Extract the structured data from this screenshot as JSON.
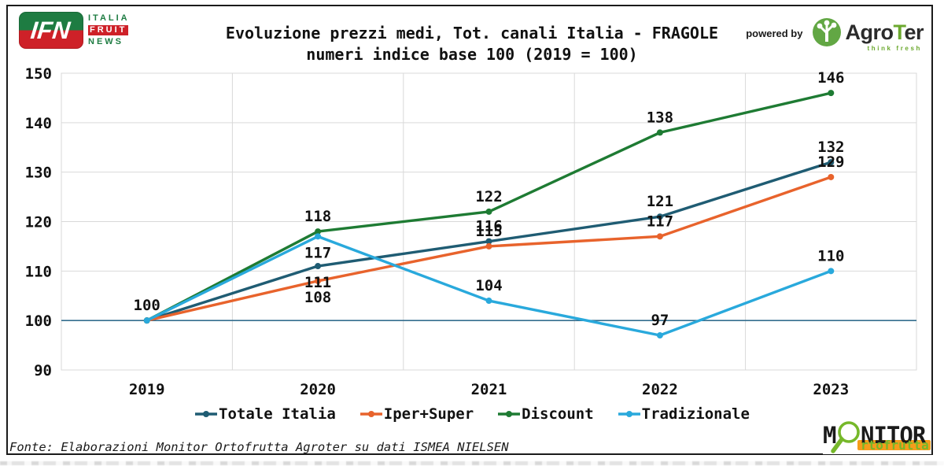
{
  "header": {
    "ifn_logo": {
      "acronym": "IFN",
      "line1": "ITALIA",
      "line2": "FRUIT",
      "line3": "NEWS"
    },
    "title_line1": "Evoluzione prezzi medi, Tot. canali Italia - FRAGOLE",
    "title_line2": "numeri indice base 100 (2019 = 100)",
    "powered_by": "powered by",
    "agroter": {
      "prefix": "Agro",
      "t": "T",
      "suffix": "er",
      "tagline": "think fresh"
    }
  },
  "chart_data": {
    "type": "line",
    "title": "Evoluzione prezzi medi, Tot. canali Italia - FRAGOLE",
    "subtitle": "numeri indice base 100 (2019 = 100)",
    "categories": [
      "2019",
      "2020",
      "2021",
      "2022",
      "2023"
    ],
    "series": [
      {
        "name": "Totale Italia",
        "color": "#1F5C73",
        "values": [
          100,
          111,
          116,
          121,
          132
        ]
      },
      {
        "name": "Iper+Super",
        "color": "#E8632C",
        "values": [
          100,
          108,
          115,
          117,
          129
        ]
      },
      {
        "name": "Discount",
        "color": "#1E7B33",
        "values": [
          100,
          118,
          122,
          138,
          146
        ]
      },
      {
        "name": "Tradizionale",
        "color": "#29A9DC",
        "values": [
          100,
          117,
          104,
          97,
          110
        ]
      }
    ],
    "ylim": [
      90,
      150
    ],
    "ytick_step": 10,
    "baseline": 100,
    "grid": true,
    "data_labels": true,
    "legend_position": "bottom",
    "colors": {
      "grid": "#D9D9D9",
      "baseline_line": "#336E8E",
      "label_text": "#111111"
    }
  },
  "footer": {
    "source": "Fonte: Elaborazioni Monitor Ortofrutta Agroter su dati ISMEA NIELSEN",
    "monitor_logo": {
      "m": "M",
      "nitor": "NITOR",
      "sub": "rtofrutta"
    }
  }
}
